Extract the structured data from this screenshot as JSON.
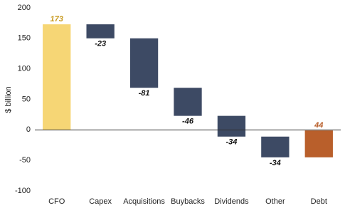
{
  "chart_data": {
    "type": "waterfall",
    "y_label": "$ billion",
    "categories": [
      "CFO",
      "Capex",
      "Acquisitions",
      "Buybacks",
      "Dividends",
      "Other",
      "Debt"
    ],
    "values": [
      173,
      -23,
      -81,
      -46,
      -34,
      -34,
      44
    ],
    "colors": [
      "#f6d675",
      "#3d4a64",
      "#3d4a64",
      "#3d4a64",
      "#3d4a64",
      "#3d4a64",
      "#b95f2b"
    ],
    "label_colors": [
      "#c89a1e",
      "#111111",
      "#111111",
      "#111111",
      "#111111",
      "#111111",
      "#b95f2b"
    ],
    "ylim": [
      -100,
      200
    ],
    "yticks": [
      -100,
      -50,
      0,
      50,
      100,
      150,
      200
    ]
  }
}
